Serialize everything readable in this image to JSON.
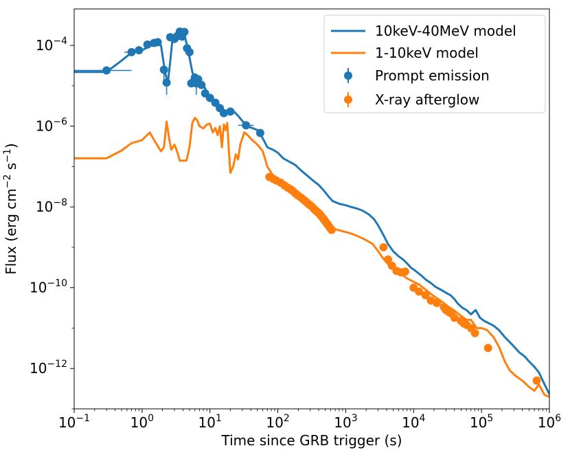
{
  "chart_data": {
    "type": "line",
    "title": "",
    "xlabel": "Time since GRB trigger (s)",
    "ylabel": "Flux (erg cm",
    "ylabel_parts": {
      "base": "Flux (erg cm",
      "exp1": "−2",
      "mid": " s",
      "exp2": "−1",
      "end": ")"
    },
    "xscale": "log",
    "yscale": "log",
    "xlim": [
      0.1,
      1000000
    ],
    "ylim": [
      1e-13,
      0.0008
    ],
    "grid": false,
    "legend_position": "top-right",
    "x_ticks": [
      {
        "value": 0.1,
        "base": "10",
        "exp": "−1"
      },
      {
        "value": 1,
        "base": "10",
        "exp": "0"
      },
      {
        "value": 10,
        "base": "10",
        "exp": "1"
      },
      {
        "value": 100,
        "base": "10",
        "exp": "2"
      },
      {
        "value": 1000,
        "base": "10",
        "exp": "3"
      },
      {
        "value": 10000,
        "base": "10",
        "exp": "4"
      },
      {
        "value": 100000,
        "base": "10",
        "exp": "5"
      },
      {
        "value": 1000000,
        "base": "10",
        "exp": "6"
      }
    ],
    "y_ticks": [
      {
        "value": 1e-12,
        "base": "10",
        "exp": "−12"
      },
      {
        "value": 1e-10,
        "base": "10",
        "exp": "−10"
      },
      {
        "value": 1e-08,
        "base": "10",
        "exp": "−8"
      },
      {
        "value": 1e-06,
        "base": "10",
        "exp": "−6"
      },
      {
        "value": 0.0001,
        "base": "10",
        "exp": "−4"
      }
    ],
    "series": [
      {
        "name": "10keV-40MeV model",
        "kind": "line",
        "color": "#1f77b4",
        "x": [
          0.1,
          0.3,
          0.5,
          0.7,
          1.0,
          1.3,
          1.6,
          1.9,
          2.2,
          2.4,
          2.6,
          2.8,
          3.1,
          3.4,
          3.7,
          4.0,
          4.3,
          4.6,
          5.0,
          5.5,
          6.0,
          6.6,
          7.2,
          8.0,
          9.0,
          10,
          12,
          14,
          16,
          19,
          22,
          26,
          30,
          35,
          42,
          50,
          60,
          70,
          85,
          100,
          120,
          150,
          180,
          220,
          270,
          330,
          400,
          480,
          560,
          640,
          800,
          1000,
          1200,
          1500,
          1800,
          2200,
          2600,
          3000,
          3600,
          4200,
          5000,
          6000,
          7000,
          8000,
          9000,
          11000,
          13000,
          15000,
          18000,
          21000,
          25000,
          30000,
          35000,
          40000,
          45000,
          52000,
          60000,
          70000,
          82000,
          95000,
          110000,
          130000,
          150000,
          180000,
          220000,
          260000,
          300000,
          360000,
          430000,
          500000,
          600000,
          700000,
          850000,
          1000000
        ],
        "y": [
          2.2e-05,
          2.2e-05,
          4.2e-05,
          6.6e-05,
          7.6e-05,
          9.5e-05,
          0.000115,
          0.0001,
          2e-05,
          1.2e-05,
          4e-05,
          0.00014,
          0.00017,
          0.00022,
          0.00024,
          0.00022,
          0.00016,
          0.0001,
          5e-05,
          2.2e-05,
          1.5e-05,
          1.5e-05,
          1.3e-05,
          1.05e-05,
          7e-06,
          5e-06,
          4e-06,
          3.2e-06,
          2.2e-06,
          2e-06,
          2.4e-06,
          1.8e-06,
          1.35e-06,
          1e-06,
          9e-07,
          8e-07,
          5e-07,
          3e-07,
          2.6e-07,
          2.2e-07,
          1.6e-07,
          1.3e-07,
          1.1e-07,
          8e-08,
          6e-08,
          4.5e-08,
          3.5e-08,
          2.5e-08,
          1.8e-08,
          1.4e-08,
          1.2e-08,
          1.1e-08,
          1e-08,
          9e-09,
          8e-09,
          6.5e-09,
          5e-09,
          3.5e-09,
          2e-09,
          1.2e-09,
          8e-10,
          6e-10,
          5e-10,
          4e-10,
          3.2e-10,
          2.5e-10,
          2e-10,
          1.6e-10,
          1.3e-10,
          1.05e-10,
          9e-11,
          7.5e-11,
          6.5e-11,
          5.2e-11,
          4e-11,
          3.2e-11,
          2.8e-11,
          2.2e-11,
          2.8e-11,
          1.8e-11,
          1.5e-11,
          1.3e-11,
          1.15e-11,
          9e-12,
          6e-12,
          4.5e-12,
          3.5e-12,
          2.5e-12,
          2e-12,
          1.5e-12,
          1.1e-12,
          8e-13,
          4e-13,
          2.3e-13
        ]
      },
      {
        "name": "1-10keV model",
        "kind": "line",
        "color": "#ff7f0e",
        "x": [
          0.1,
          0.3,
          0.5,
          0.7,
          1.0,
          1.3,
          1.6,
          1.9,
          2.1,
          2.3,
          2.5,
          2.7,
          3.0,
          3.3,
          3.6,
          4.0,
          4.5,
          5.0,
          5.5,
          6.0,
          6.5,
          7.0,
          8.0,
          9.0,
          10,
          11,
          12,
          13,
          14,
          15,
          16,
          17,
          18,
          19,
          20,
          22,
          24,
          26,
          28,
          32,
          36,
          42,
          50,
          60,
          70,
          85,
          100,
          130,
          170,
          220,
          280,
          350,
          420,
          500,
          600,
          700,
          900,
          1200,
          1600,
          2000,
          2500,
          3000,
          3500,
          4000,
          4500,
          5000,
          5500,
          6000,
          7000,
          8000,
          10000,
          12000,
          15000,
          18000,
          22000,
          27000,
          33000,
          40000,
          50000,
          60000,
          70000,
          85000,
          100000,
          120000,
          150000,
          180000,
          220000,
          260000,
          320000,
          400000,
          500000,
          600000,
          700000,
          850000,
          1000000
        ],
        "y": [
          1.6e-07,
          1.6e-07,
          2.5e-07,
          3.8e-07,
          4.5e-07,
          7e-07,
          3.8e-07,
          2.4e-07,
          3e-07,
          1.3e-06,
          5e-07,
          2.6e-07,
          3.5e-07,
          2.3e-07,
          1.4e-07,
          1.4e-07,
          1.4e-07,
          3e-07,
          1.2e-06,
          1.6e-06,
          1.4e-06,
          1e-06,
          8.8e-07,
          1.1e-06,
          1.15e-06,
          7e-07,
          9e-07,
          6e-07,
          1e-06,
          3e-07,
          1.1e-06,
          8e-07,
          1.2e-06,
          2.5e-07,
          7e-08,
          1e-07,
          2e-07,
          1.5e-07,
          3.5e-07,
          7e-07,
          6e-07,
          4.5e-07,
          3.5e-07,
          2.4e-07,
          1e-07,
          6e-08,
          4.8e-08,
          3.3e-08,
          2.1e-08,
          1.5e-08,
          1e-08,
          7e-09,
          5e-09,
          4e-09,
          3.3e-09,
          2.8e-09,
          2.5e-09,
          2.2e-09,
          1.8e-09,
          1.5e-09,
          1.2e-09,
          8e-10,
          5.5e-10,
          4.2e-10,
          3.5e-10,
          3e-10,
          2.4e-10,
          2.2e-10,
          2e-10,
          1.7e-10,
          1.4e-10,
          1.2e-10,
          9e-11,
          7e-11,
          5.5e-11,
          4.3e-11,
          3.3e-11,
          2.7e-11,
          2e-11,
          1.6e-11,
          1.6e-11,
          1e-11,
          1e-11,
          9e-12,
          6e-12,
          3.5e-12,
          1.5e-12,
          9e-13,
          6.5e-13,
          5e-13,
          3.5e-13,
          2.8e-13,
          4e-13,
          2.2e-13,
          2e-13
        ]
      },
      {
        "name": "Prompt emission",
        "kind": "errorbar",
        "color": "#1f77b4",
        "x": [
          0.3,
          0.7,
          0.9,
          1.2,
          1.5,
          1.7,
          2.1,
          2.3,
          2.6,
          3.0,
          3.3,
          3.6,
          3.9,
          4.2,
          4.6,
          5.0,
          5.3,
          5.7,
          6.0,
          6.3,
          6.7,
          7.5,
          8.5,
          10,
          12,
          14,
          16,
          20,
          34,
          55
        ],
        "y": [
          2.4e-05,
          6.8e-05,
          7.6e-05,
          0.000105,
          0.000115,
          0.00012,
          2.5e-05,
          1.2e-05,
          0.00016,
          0.000145,
          0.00017,
          0.00022,
          0.000165,
          0.000215,
          8.5e-05,
          6.8e-05,
          1.15e-05,
          1.25e-05,
          1.6e-05,
          1.15e-05,
          1.45e-05,
          1.05e-05,
          6.5e-06,
          5e-06,
          3.8e-06,
          2.8e-06,
          2.1e-06,
          2.3e-06,
          1.05e-06,
          6.8e-07
        ],
        "xerr": [
          [
            0.3,
            0.4
          ],
          [
            0.15,
            0.1
          ],
          [
            0.1,
            0.1
          ],
          [
            0.1,
            0.1
          ],
          [
            0.1,
            0.1
          ],
          [
            0.1,
            0.1
          ],
          [
            0.1,
            0.1
          ],
          [
            0.1,
            0.1
          ],
          [
            0.1,
            0.1
          ],
          [
            0.1,
            0.1
          ],
          [
            0.1,
            0.1
          ],
          [
            0.1,
            0.1
          ],
          [
            0.1,
            0.1
          ],
          [
            0.1,
            0.1
          ],
          [
            0.1,
            0.1
          ],
          [
            0.1,
            0.1
          ],
          [
            0.1,
            0.1
          ],
          [
            0.1,
            0.1
          ],
          [
            0.1,
            0.1
          ],
          [
            0.1,
            0.1
          ],
          [
            0.1,
            0.1
          ],
          [
            0.3,
            0.3
          ],
          [
            0.3,
            0.3
          ],
          [
            0.4,
            0.4
          ],
          [
            0.5,
            0.5
          ],
          [
            0.6,
            0.6
          ],
          [
            0.8,
            0.8
          ],
          [
            2,
            2
          ],
          [
            8,
            10
          ],
          [
            4,
            4
          ]
        ],
        "yerr": [
          [
            2e-06,
            2e-06
          ],
          [
            5e-06,
            5e-06
          ],
          [
            5e-06,
            5e-06
          ],
          [
            8e-06,
            8e-06
          ],
          [
            1e-05,
            1e-05
          ],
          [
            1e-05,
            1e-05
          ],
          [
            1.2e-05,
            6e-06
          ],
          [
            6e-06,
            6e-06
          ],
          [
            1e-05,
            1e-05
          ],
          [
            1e-05,
            1e-05
          ],
          [
            1e-05,
            1e-05
          ],
          [
            1e-05,
            1e-05
          ],
          [
            1e-05,
            1e-05
          ],
          [
            1e-05,
            1e-05
          ],
          [
            8e-06,
            8e-06
          ],
          [
            6e-06,
            6e-06
          ],
          [
            1e-06,
            1e-06
          ],
          [
            1e-06,
            1e-06
          ],
          [
            1.5e-06,
            1.5e-06
          ],
          [
            5.5e-06,
            3e-06
          ],
          [
            2e-06,
            2e-06
          ],
          [
            1e-06,
            1e-06
          ],
          [
            7e-07,
            7e-07
          ],
          [
            5e-07,
            5e-07
          ],
          [
            4e-07,
            4e-07
          ],
          [
            3e-07,
            3e-07
          ],
          [
            2e-07,
            2e-07
          ],
          [
            2e-07,
            2e-07
          ],
          [
            1e-07,
            1e-07
          ],
          [
            6e-08,
            6e-08
          ]
        ]
      },
      {
        "name": "X-ray afterglow",
        "kind": "errorbar",
        "color": "#ff7f0e",
        "x": [
          75,
          85,
          95,
          110,
          125,
          140,
          155,
          170,
          185,
          200,
          220,
          240,
          260,
          280,
          300,
          320,
          340,
          360,
          380,
          400,
          420,
          440,
          460,
          480,
          500,
          520,
          540,
          560,
          580,
          600,
          620,
          3600,
          4200,
          4800,
          5600,
          6500,
          7500,
          10000,
          12000,
          15000,
          18000,
          22000,
          28000,
          30000,
          33000,
          36000,
          40000,
          50000,
          55000,
          60000,
          70000,
          80000,
          125000,
          650000
        ],
        "y": [
          5.5e-08,
          5e-08,
          4.5e-08,
          4e-08,
          3.4e-08,
          3e-08,
          2.7e-08,
          2.4e-08,
          2.1e-08,
          1.9e-08,
          1.7e-08,
          1.5e-08,
          1.35e-08,
          1.2e-08,
          1.1e-08,
          1e-08,
          9e-09,
          8.2e-09,
          7.6e-09,
          7e-09,
          6.4e-09,
          5.8e-09,
          5.3e-09,
          4.8e-09,
          4.4e-09,
          4e-09,
          3.7e-09,
          3.4e-09,
          3.1e-09,
          2.9e-09,
          2.7e-09,
          1e-09,
          5e-10,
          3.5e-10,
          2.6e-10,
          2.4e-10,
          2.5e-10,
          1e-10,
          8e-11,
          6.5e-11,
          4.8e-11,
          4.2e-11,
          3.3e-11,
          2.8e-11,
          2.5e-11,
          2.3e-11,
          1.8e-11,
          1.5e-11,
          1.3e-11,
          1.2e-11,
          1e-11,
          7.5e-12,
          3.2e-12,
          5e-13
        ],
        "xerr": [],
        "yerr": []
      }
    ]
  }
}
